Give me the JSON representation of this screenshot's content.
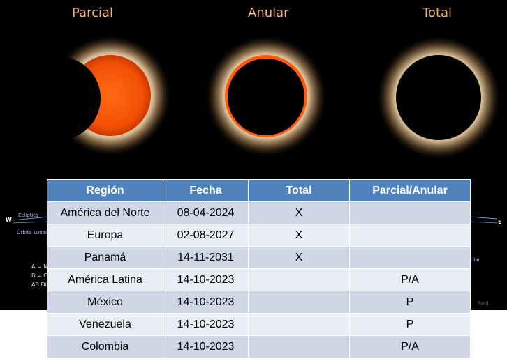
{
  "labels": {
    "parcial": "Parcial",
    "anular": "Anular",
    "total": "Total"
  },
  "diagram": {
    "w": "W",
    "e": "E",
    "ecliptica": "Ecliptica",
    "orbita": "Órbita Lunar",
    "solar": "olar",
    "a": "A = No",
    "b": "B = Ce",
    "ab": "AB Dis",
    "credit": "Fund"
  },
  "table": {
    "headers": [
      "Región",
      "Fecha",
      "Total",
      "Parcial/Anular"
    ],
    "rows": [
      [
        "América del Norte",
        "08-04-2024",
        "X",
        ""
      ],
      [
        "Europa",
        "02-08-2027",
        "X",
        ""
      ],
      [
        "Panamá",
        "14-11-2031",
        "X",
        ""
      ],
      [
        "América Latina",
        "14-10-2023",
        "",
        "P/A"
      ],
      [
        "México",
        "14-10-2023",
        "",
        "P"
      ],
      [
        "Venezuela",
        "14-10-2023",
        "",
        "P"
      ],
      [
        "Colombia",
        "14-10-2023",
        "",
        "P/A"
      ]
    ]
  },
  "colors": {
    "header_bg": "#4f81bd",
    "row_odd": "#cfd7e6",
    "row_even": "#e9edf4",
    "label_color": "#f5b37a",
    "sun_orange": "#ff5a0a"
  }
}
